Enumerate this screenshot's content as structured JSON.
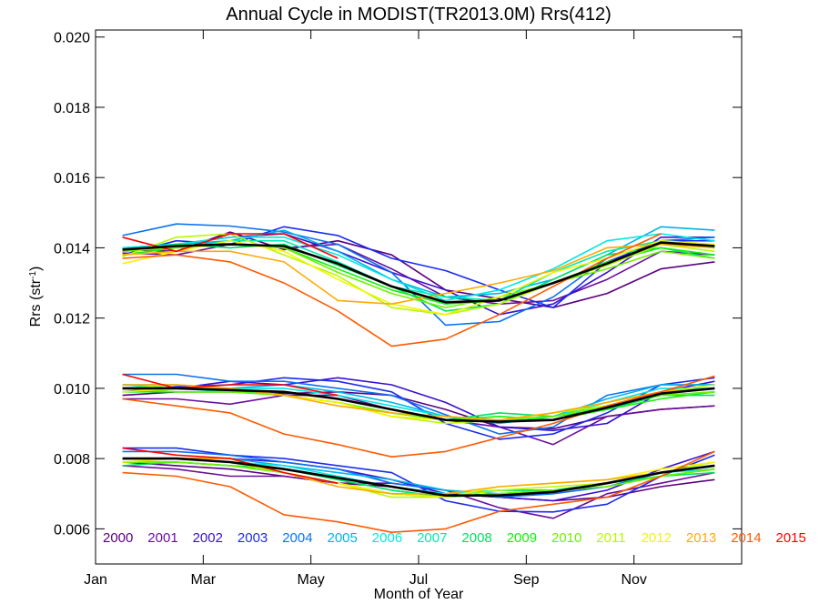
{
  "chart_data": {
    "type": "line",
    "title": "Annual Cycle in MODIST(TR2013.0M) Rrs(412)",
    "xlabel": "Month of Year",
    "ylabel_base": "Rrs (str",
    "ylabel_sup": "-1",
    "ylabel_end": ")",
    "xlim": [
      0,
      12
    ],
    "ylim": [
      0.005,
      0.0202
    ],
    "x_ticks": [
      {
        "value": 0,
        "label": "Jan"
      },
      {
        "value": 2,
        "label": "Mar"
      },
      {
        "value": 4,
        "label": "May"
      },
      {
        "value": 6,
        "label": "Jul"
      },
      {
        "value": 8,
        "label": "Sep"
      },
      {
        "value": 10,
        "label": "Nov"
      }
    ],
    "y_ticks": [
      {
        "value": 0.006,
        "label": "0.006"
      },
      {
        "value": 0.008,
        "label": "0.008"
      },
      {
        "value": 0.01,
        "label": "0.010"
      },
      {
        "value": 0.012,
        "label": "0.012"
      },
      {
        "value": 0.014,
        "label": "0.014"
      },
      {
        "value": 0.016,
        "label": "0.016"
      },
      {
        "value": 0.018,
        "label": "0.018"
      },
      {
        "value": 0.02,
        "label": "0.020"
      }
    ],
    "x": [
      0.5,
      1.5,
      2.5,
      3.5,
      4.5,
      5.5,
      6.5,
      7.5,
      8.5,
      9.5,
      10.5,
      11.5
    ],
    "legend": {
      "placement": "bottom-inside",
      "entries": [
        {
          "name": "2000",
          "color": "#5a0080"
        },
        {
          "name": "2001",
          "color": "#6a0f9c"
        },
        {
          "name": "2002",
          "color": "#3a10d0"
        },
        {
          "name": "2003",
          "color": "#1a2cf0"
        },
        {
          "name": "2004",
          "color": "#0a72f0"
        },
        {
          "name": "2005",
          "color": "#00b4e8"
        },
        {
          "name": "2006",
          "color": "#00e8e0"
        },
        {
          "name": "2007",
          "color": "#00eab0"
        },
        {
          "name": "2008",
          "color": "#00e060"
        },
        {
          "name": "2009",
          "color": "#10f010"
        },
        {
          "name": "2010",
          "color": "#70f000"
        },
        {
          "name": "2011",
          "color": "#b8f800"
        },
        {
          "name": "2012",
          "color": "#f4f400"
        },
        {
          "name": "2013",
          "color": "#ffaa00"
        },
        {
          "name": "2014",
          "color": "#ff5a00"
        },
        {
          "name": "2015",
          "color": "#ff0000"
        }
      ]
    },
    "series": [
      {
        "color": "#5a0080",
        "values": [
          0.01395,
          0.0139,
          0.01445,
          0.01395,
          0.0142,
          0.0138,
          0.0128,
          0.01255,
          0.0123,
          0.0127,
          0.0134,
          0.0136
        ]
      },
      {
        "color": "#6a0f9c",
        "values": [
          0.01385,
          0.0138,
          0.0141,
          0.014,
          0.0141,
          0.0134,
          0.0126,
          0.0124,
          0.0125,
          0.0131,
          0.0139,
          0.0138
        ]
      },
      {
        "color": "#3a10d0",
        "values": [
          0.0139,
          0.0141,
          0.0143,
          0.0144,
          0.0139,
          0.0133,
          0.0128,
          0.0121,
          0.0124,
          0.0133,
          0.0143,
          0.0143
        ]
      },
      {
        "color": "#1a2cf0",
        "values": [
          0.0138,
          0.0142,
          0.0141,
          0.0146,
          0.01435,
          0.0137,
          0.01335,
          0.0128,
          0.0123,
          0.0136,
          0.0142,
          0.0142
        ]
      },
      {
        "color": "#0a72f0",
        "values": [
          0.01435,
          0.01468,
          0.01462,
          0.01445,
          0.0141,
          0.0133,
          0.0118,
          0.0119,
          0.0126,
          0.0137,
          0.0142,
          0.0143
        ]
      },
      {
        "color": "#00b4e8",
        "values": [
          0.014,
          0.0141,
          0.0142,
          0.0145,
          0.0139,
          0.0131,
          0.0126,
          0.0127,
          0.0131,
          0.0138,
          0.0146,
          0.0145
        ]
      },
      {
        "color": "#00e8e0",
        "values": [
          0.014,
          0.0141,
          0.0143,
          0.0143,
          0.0138,
          0.0131,
          0.0125,
          0.0128,
          0.0134,
          0.0142,
          0.0144,
          0.0142
        ]
      },
      {
        "color": "#00eab0",
        "values": [
          0.0139,
          0.014,
          0.0142,
          0.0142,
          0.0136,
          0.0129,
          0.0126,
          0.0125,
          0.0133,
          0.0139,
          0.0142,
          0.014
        ]
      },
      {
        "color": "#00e060",
        "values": [
          0.0139,
          0.0141,
          0.014,
          0.0141,
          0.0135,
          0.0129,
          0.0122,
          0.0124,
          0.0131,
          0.0138,
          0.014,
          0.0137
        ]
      },
      {
        "color": "#10f010",
        "values": [
          0.0138,
          0.014,
          0.0141,
          0.014,
          0.0134,
          0.0128,
          0.0124,
          0.0125,
          0.013,
          0.0136,
          0.014,
          0.0138
        ]
      },
      {
        "color": "#70f000",
        "values": [
          0.0139,
          0.014,
          0.0141,
          0.014,
          0.0133,
          0.0127,
          0.0123,
          0.0126,
          0.013,
          0.0134,
          0.0139,
          0.0137
        ]
      },
      {
        "color": "#b8f800",
        "values": [
          0.01375,
          0.0143,
          0.0144,
          0.0138,
          0.0132,
          0.0123,
          0.0121,
          0.0124,
          0.013,
          0.0135,
          0.0141,
          0.0139
        ]
      },
      {
        "color": "#f4f400",
        "values": [
          0.01355,
          0.0139,
          0.0142,
          0.0139,
          0.0131,
          0.0124,
          0.0121,
          0.0126,
          0.0133,
          0.0137,
          0.0142,
          0.0141
        ]
      },
      {
        "color": "#ffaa00",
        "values": [
          0.0138,
          0.0139,
          0.0139,
          0.0136,
          0.0125,
          0.0124,
          0.0127,
          0.013,
          0.01335,
          0.014,
          0.0141,
          0.014
        ]
      },
      {
        "color": "#ff5a00",
        "values": [
          0.0137,
          0.0138,
          0.0136,
          0.013,
          0.0122,
          0.0112,
          0.0114,
          0.0121,
          0.0129,
          0.0137,
          0.0144,
          null
        ]
      },
      {
        "color": "#ff0000",
        "values": [
          0.0143,
          0.0139,
          0.0144,
          0.0144,
          0.0137,
          null,
          null,
          null,
          null,
          null,
          null,
          null
        ]
      },
      {
        "color": "#5a0080",
        "values": [
          0.0098,
          0.0099,
          0.0099,
          0.00985,
          0.0099,
          0.0098,
          0.0094,
          0.0089,
          0.00885,
          0.0092,
          0.0094,
          0.0095
        ]
      },
      {
        "color": "#6a0f9c",
        "values": [
          0.0097,
          0.0097,
          0.00955,
          0.0098,
          0.0098,
          0.0094,
          0.0091,
          0.0089,
          0.0084,
          0.0092,
          0.0094,
          0.0095
        ]
      },
      {
        "color": "#3a10d0",
        "values": [
          0.01,
          0.01,
          0.0102,
          0.0101,
          0.0103,
          0.0101,
          0.0096,
          0.0089,
          0.0088,
          0.009,
          0.0099,
          0.0102
        ]
      },
      {
        "color": "#1a2cf0",
        "values": [
          0.0099,
          0.01005,
          0.0101,
          0.0103,
          0.0102,
          0.0099,
          0.009,
          0.00855,
          0.0087,
          0.0093,
          0.0101,
          0.0103
        ]
      },
      {
        "color": "#0a72f0",
        "values": [
          0.0104,
          0.0104,
          0.0102,
          0.0102,
          0.01,
          0.0098,
          0.00925,
          0.0087,
          0.0089,
          0.0098,
          0.0101,
          0.0101
        ]
      },
      {
        "color": "#00b4e8",
        "values": [
          0.0101,
          0.0101,
          0.01,
          0.0101,
          0.0099,
          0.0096,
          0.0092,
          0.009,
          0.0092,
          0.0097,
          0.0101,
          0.0101
        ]
      },
      {
        "color": "#00e8e0",
        "values": [
          0.0101,
          0.01,
          0.01,
          0.01,
          0.0098,
          0.0095,
          0.0092,
          0.0091,
          0.0092,
          0.0096,
          0.01,
          0.01
        ]
      },
      {
        "color": "#00eab0",
        "values": [
          0.01,
          0.01,
          0.0099,
          0.0099,
          0.0097,
          0.0094,
          0.0091,
          0.0091,
          0.0091,
          0.0095,
          0.0098,
          0.0099
        ]
      },
      {
        "color": "#00e060",
        "values": [
          0.01,
          0.0099,
          0.0099,
          0.0099,
          0.0097,
          0.0094,
          0.0091,
          0.0093,
          0.0092,
          0.0094,
          0.0098,
          0.0098
        ]
      },
      {
        "color": "#10f010",
        "values": [
          0.0099,
          0.0099,
          0.0099,
          0.0098,
          0.0096,
          0.0093,
          0.0091,
          0.0092,
          0.0091,
          0.0094,
          0.0097,
          0.0099
        ]
      },
      {
        "color": "#70f000",
        "values": [
          0.01,
          0.0099,
          0.0099,
          0.0098,
          0.0096,
          0.0093,
          0.0091,
          0.0091,
          0.0092,
          0.0095,
          0.0098,
          0.0099
        ]
      },
      {
        "color": "#b8f800",
        "values": [
          0.01,
          0.0101,
          0.01,
          0.0098,
          0.0096,
          0.0092,
          0.009,
          0.0091,
          0.0093,
          0.0095,
          0.0099,
          0.0101
        ]
      },
      {
        "color": "#f4f400",
        "values": [
          0.0099,
          0.01,
          0.01,
          0.0098,
          0.0096,
          0.0092,
          0.0091,
          0.0091,
          0.0093,
          0.0096,
          0.0099,
          0.01
        ]
      },
      {
        "color": "#ffaa00",
        "values": [
          0.0101,
          0.0101,
          0.01,
          0.0098,
          0.0095,
          0.0093,
          0.0092,
          0.0091,
          0.0093,
          0.0096,
          0.0099,
          0.01
        ]
      },
      {
        "color": "#ff5a00",
        "values": [
          0.0097,
          0.0095,
          0.0093,
          0.0087,
          0.0084,
          0.00805,
          0.0082,
          0.0086,
          0.009,
          0.0095,
          0.0099,
          0.01035
        ]
      },
      {
        "color": "#ff0000",
        "values": [
          0.0104,
          0.01,
          0.0101,
          0.0101,
          0.0098,
          null,
          null,
          null,
          null,
          null,
          null,
          null
        ]
      },
      {
        "color": "#5a0080",
        "values": [
          0.0079,
          0.0078,
          0.0077,
          0.0075,
          0.0073,
          0.0072,
          0.007,
          0.0069,
          0.0068,
          0.0069,
          0.0072,
          0.0074
        ]
      },
      {
        "color": "#6a0f9c",
        "values": [
          0.0078,
          0.0077,
          0.0075,
          0.0075,
          0.0073,
          0.0073,
          0.0071,
          0.0066,
          0.0063,
          0.007,
          0.0073,
          0.0076
        ]
      },
      {
        "color": "#3a10d0",
        "values": [
          0.008,
          0.008,
          0.008,
          0.0079,
          0.0077,
          0.0074,
          0.007,
          0.0069,
          0.0068,
          0.0071,
          0.0077,
          0.0082
        ]
      },
      {
        "color": "#1a2cf0",
        "values": [
          0.0083,
          0.0083,
          0.0081,
          0.008,
          0.0078,
          0.0076,
          0.0068,
          0.0065,
          0.00648,
          0.0067,
          0.0075,
          0.0081
        ]
      },
      {
        "color": "#0a72f0",
        "values": [
          0.0082,
          0.0082,
          0.0081,
          0.0079,
          0.0077,
          0.0073,
          0.0071,
          0.0069,
          0.007,
          0.0072,
          0.0076,
          0.0078
        ]
      },
      {
        "color": "#00b4e8",
        "values": [
          0.008,
          0.008,
          0.008,
          0.0078,
          0.0076,
          0.0074,
          0.0071,
          0.007,
          0.0071,
          0.0073,
          0.0076,
          0.0078
        ]
      },
      {
        "color": "#00e8e0",
        "values": [
          0.008,
          0.008,
          0.0079,
          0.0078,
          0.0075,
          0.0072,
          0.007,
          0.0071,
          0.0071,
          0.0073,
          0.0076,
          0.0077
        ]
      },
      {
        "color": "#00eab0",
        "values": [
          0.0079,
          0.0079,
          0.0078,
          0.0077,
          0.0074,
          0.0071,
          0.0069,
          0.007,
          0.0071,
          0.0073,
          0.0075,
          0.0077
        ]
      },
      {
        "color": "#00e060",
        "values": [
          0.0078,
          0.0079,
          0.0078,
          0.0077,
          0.0074,
          0.0071,
          0.0069,
          0.0071,
          0.0071,
          0.0073,
          0.0075,
          0.0076
        ]
      },
      {
        "color": "#10f010",
        "values": [
          0.0079,
          0.0079,
          0.0078,
          0.0076,
          0.0073,
          0.007,
          0.0069,
          0.007,
          0.0071,
          0.0072,
          0.0075,
          0.0077
        ]
      },
      {
        "color": "#70f000",
        "values": [
          0.0079,
          0.0079,
          0.0078,
          0.0076,
          0.0073,
          0.007,
          0.0069,
          0.007,
          0.0071,
          0.0072,
          0.0075,
          0.0077
        ]
      },
      {
        "color": "#b8f800",
        "values": [
          0.0079,
          0.008,
          0.0079,
          0.0076,
          0.0073,
          0.0069,
          0.0069,
          0.0071,
          0.0072,
          0.0073,
          0.0076,
          0.0079
        ]
      },
      {
        "color": "#f4f400",
        "values": [
          0.0079,
          0.008,
          0.008,
          0.0076,
          0.0073,
          0.007,
          0.0069,
          0.0072,
          0.0073,
          0.0074,
          0.0077,
          0.0079
        ]
      },
      {
        "color": "#ffaa00",
        "values": [
          0.008,
          0.008,
          0.008,
          0.0076,
          0.0072,
          0.007,
          0.007,
          0.0072,
          0.0073,
          0.0074,
          0.0076,
          0.0078
        ]
      },
      {
        "color": "#ff5a00",
        "values": [
          0.0076,
          0.0075,
          0.0072,
          0.0064,
          0.0062,
          0.0059,
          0.006,
          0.0065,
          0.0067,
          0.0069,
          0.0075,
          0.0082
        ]
      },
      {
        "color": "#ff0000",
        "values": [
          0.0083,
          0.0081,
          0.008,
          0.0076,
          0.0073,
          null,
          null,
          null,
          null,
          null,
          null,
          null
        ]
      },
      {
        "color": "#000000",
        "width": 2.6,
        "values": [
          0.01395,
          0.01405,
          0.0141,
          0.01405,
          0.01355,
          0.0129,
          0.01245,
          0.0125,
          0.013,
          0.01355,
          0.01415,
          0.01405
        ]
      },
      {
        "color": "#000000",
        "width": 2.6,
        "values": [
          0.01,
          0.01,
          0.00995,
          0.0099,
          0.0097,
          0.0094,
          0.0091,
          0.00905,
          0.0091,
          0.00945,
          0.00985,
          0.01
        ]
      },
      {
        "color": "#000000",
        "width": 2.6,
        "values": [
          0.008,
          0.008,
          0.0079,
          0.0077,
          0.00745,
          0.0072,
          0.00695,
          0.00695,
          0.00705,
          0.0073,
          0.0076,
          0.0078
        ]
      }
    ]
  }
}
